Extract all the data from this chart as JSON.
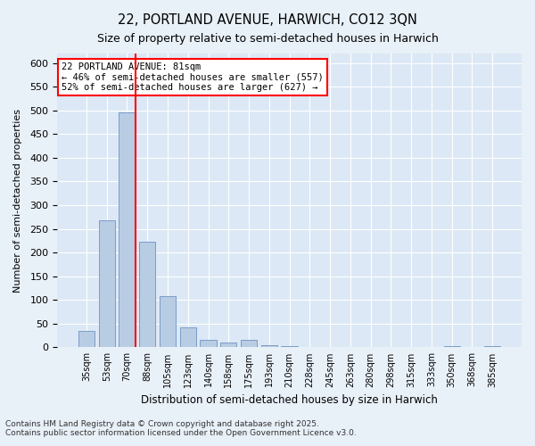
{
  "title1": "22, PORTLAND AVENUE, HARWICH, CO12 3QN",
  "title2": "Size of property relative to semi-detached houses in Harwich",
  "xlabel": "Distribution of semi-detached houses by size in Harwich",
  "ylabel": "Number of semi-detached properties",
  "categories": [
    "35sqm",
    "53sqm",
    "70sqm",
    "88sqm",
    "105sqm",
    "123sqm",
    "140sqm",
    "158sqm",
    "175sqm",
    "193sqm",
    "210sqm",
    "228sqm",
    "245sqm",
    "263sqm",
    "280sqm",
    "298sqm",
    "315sqm",
    "333sqm",
    "350sqm",
    "368sqm",
    "385sqm"
  ],
  "values": [
    35,
    268,
    495,
    222,
    108,
    42,
    15,
    10,
    15,
    5,
    2,
    1,
    1,
    0,
    0,
    0,
    0,
    0,
    2,
    0,
    2
  ],
  "bar_color": "#b8cce4",
  "bar_edge_color": "#7a9dc8",
  "redline_index": 2,
  "annotation_title": "22 PORTLAND AVENUE: 81sqm",
  "annotation_line1": "← 46% of semi-detached houses are smaller (557)",
  "annotation_line2": "52% of semi-detached houses are larger (627) →",
  "ylim": [
    0,
    620
  ],
  "yticks": [
    0,
    50,
    100,
    150,
    200,
    250,
    300,
    350,
    400,
    450,
    500,
    550,
    600
  ],
  "footer1": "Contains HM Land Registry data © Crown copyright and database right 2025.",
  "footer2": "Contains public sector information licensed under the Open Government Licence v3.0.",
  "bg_color": "#e8f0f8",
  "plot_bg_color": "#dce8f5"
}
